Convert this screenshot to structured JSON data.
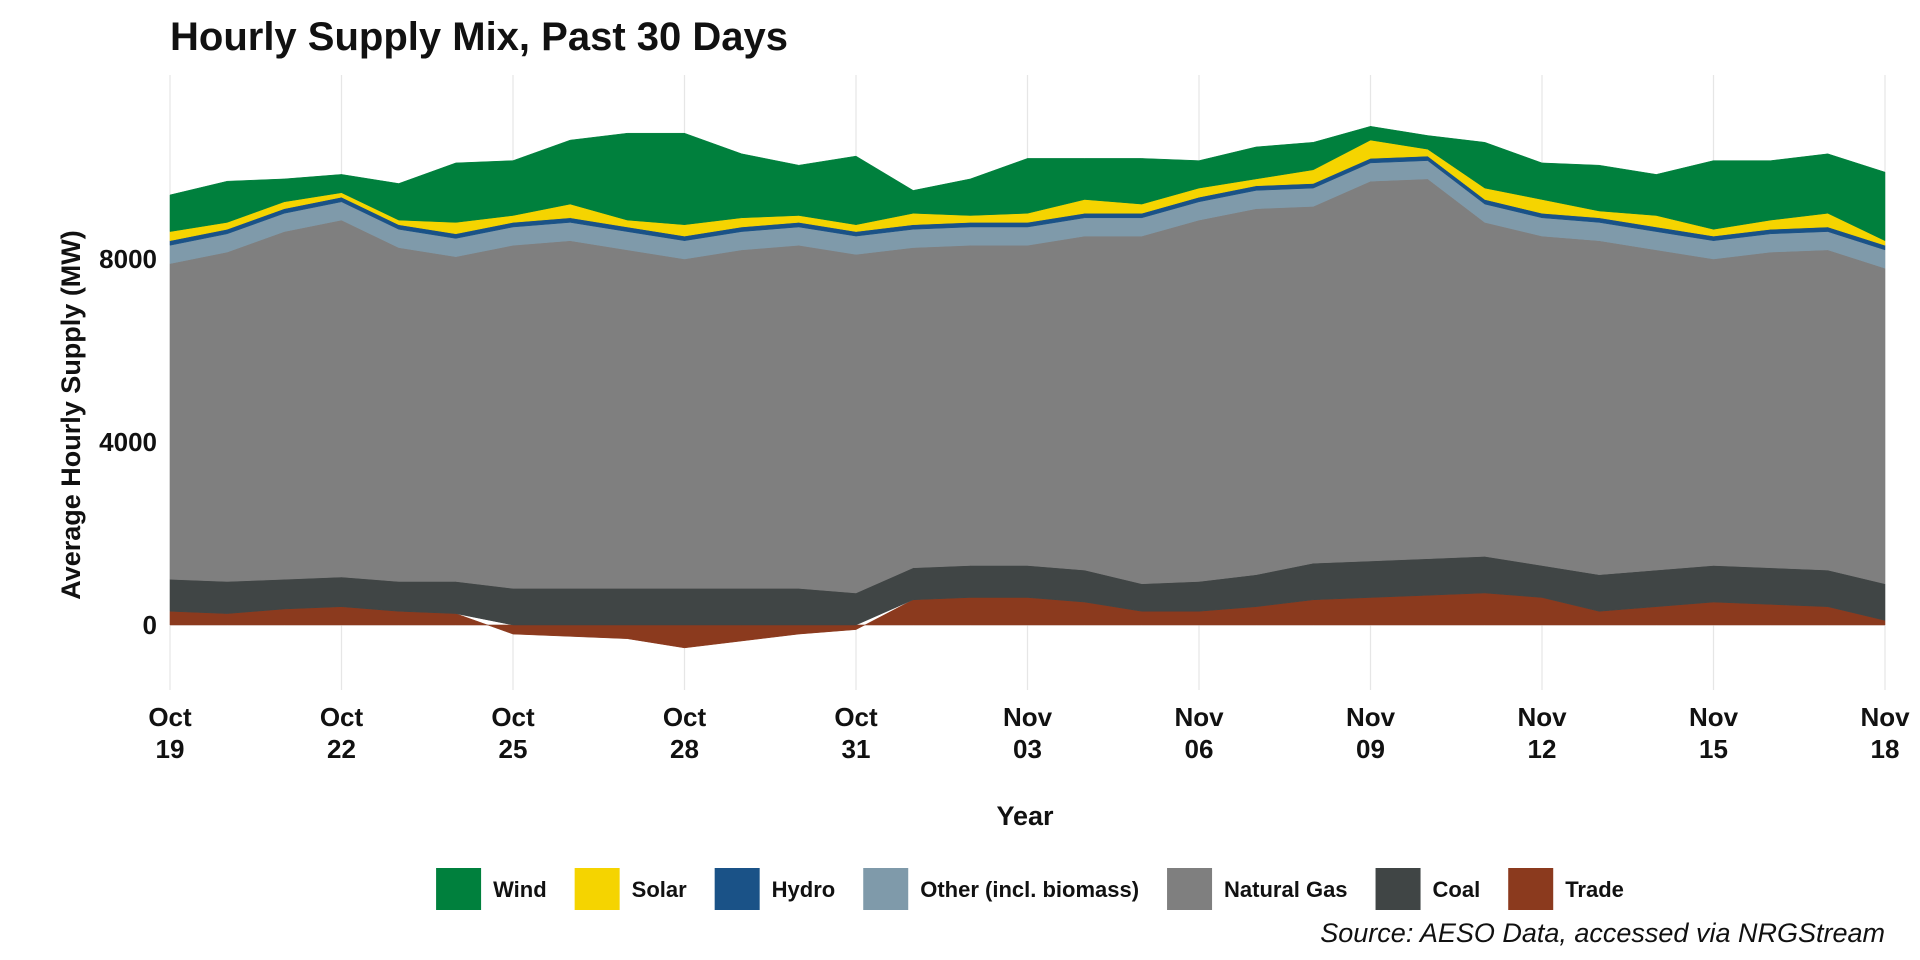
{
  "chart_data": {
    "type": "area",
    "stacked": true,
    "title": "Hourly Supply Mix, Past 30 Days",
    "xlabel": "Year",
    "ylabel": "Average Hourly Supply (MW)",
    "caption": "Source: AESO Data, accessed via NRGStream",
    "ylim": [
      -800,
      11800
    ],
    "y_ticks": [
      0,
      4000,
      8000
    ],
    "x_ticks": [
      {
        "month": "Oct",
        "day": "19"
      },
      {
        "month": "Oct",
        "day": "22"
      },
      {
        "month": "Oct",
        "day": "25"
      },
      {
        "month": "Oct",
        "day": "28"
      },
      {
        "month": "Oct",
        "day": "31"
      },
      {
        "month": "Nov",
        "day": "03"
      },
      {
        "month": "Nov",
        "day": "06"
      },
      {
        "month": "Nov",
        "day": "09"
      },
      {
        "month": "Nov",
        "day": "12"
      },
      {
        "month": "Nov",
        "day": "15"
      },
      {
        "month": "Nov",
        "day": "18"
      }
    ],
    "grid": true,
    "legend_position": "bottom",
    "x": [
      "Oct 19",
      "Oct 20",
      "Oct 21",
      "Oct 22",
      "Oct 23",
      "Oct 24",
      "Oct 25",
      "Oct 26",
      "Oct 27",
      "Oct 28",
      "Oct 29",
      "Oct 30",
      "Oct 31",
      "Nov 01",
      "Nov 02",
      "Nov 03",
      "Nov 04",
      "Nov 05",
      "Nov 06",
      "Nov 07",
      "Nov 08",
      "Nov 09",
      "Nov 10",
      "Nov 11",
      "Nov 12",
      "Nov 13",
      "Nov 14",
      "Nov 15",
      "Nov 16",
      "Nov 17",
      "Nov 18"
    ],
    "series": [
      {
        "name": "Trade",
        "color": "#8B3A1E",
        "values": [
          300,
          250,
          350,
          400,
          300,
          250,
          -200,
          -250,
          -300,
          -500,
          -350,
          -200,
          -100,
          550,
          600,
          600,
          500,
          300,
          300,
          400,
          550,
          600,
          650,
          700,
          600,
          300,
          400,
          500,
          450,
          400,
          100
        ]
      },
      {
        "name": "Coal",
        "color": "#404545",
        "values": [
          700,
          700,
          650,
          650,
          650,
          700,
          800,
          800,
          800,
          800,
          800,
          800,
          700,
          700,
          700,
          700,
          700,
          600,
          650,
          700,
          800,
          800,
          800,
          800,
          700,
          800,
          800,
          800,
          800,
          800,
          800
        ]
      },
      {
        "name": "Natural Gas",
        "color": "#7f7f7f",
        "values": [
          6900,
          7200,
          7600,
          7800,
          7300,
          7100,
          7500,
          7600,
          7400,
          7200,
          7400,
          7500,
          7400,
          7000,
          7000,
          7000,
          7300,
          7600,
          7900,
          8000,
          7800,
          8300,
          8300,
          7300,
          7200,
          7300,
          7000,
          6700,
          6900,
          7000,
          6900
        ]
      },
      {
        "name": "Other (incl. biomass)",
        "color": "#7f9aaa",
        "values": [
          400,
          400,
          400,
          400,
          400,
          400,
          400,
          400,
          400,
          400,
          400,
          400,
          400,
          400,
          400,
          400,
          400,
          400,
          400,
          400,
          400,
          400,
          400,
          400,
          400,
          400,
          400,
          400,
          400,
          400,
          400
        ]
      },
      {
        "name": "Hydro",
        "color": "#1a5287",
        "values": [
          100,
          100,
          100,
          100,
          100,
          100,
          100,
          100,
          100,
          100,
          100,
          100,
          100,
          100,
          100,
          100,
          100,
          100,
          100,
          100,
          100,
          100,
          100,
          100,
          100,
          100,
          100,
          100,
          100,
          100,
          100
        ]
      },
      {
        "name": "Solar",
        "color": "#f5d400",
        "values": [
          200,
          150,
          150,
          100,
          100,
          250,
          150,
          300,
          150,
          250,
          200,
          150,
          150,
          250,
          150,
          200,
          300,
          200,
          200,
          150,
          300,
          400,
          150,
          250,
          300,
          150,
          250,
          150,
          200,
          300,
          100
        ]
      },
      {
        "name": "Wind",
        "color": "#00803d",
        "values": [
          800,
          900,
          500,
          400,
          800,
          1300,
          1200,
          1400,
          1900,
          2000,
          1400,
          1100,
          1500,
          500,
          800,
          1200,
          900,
          1000,
          600,
          700,
          600,
          300,
          300,
          1000,
          800,
          1000,
          900,
          1500,
          1300,
          1300,
          1500
        ]
      }
    ]
  }
}
